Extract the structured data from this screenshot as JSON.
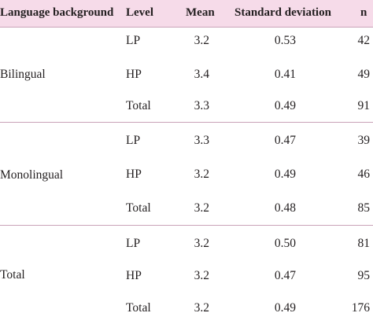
{
  "table": {
    "headers": {
      "language_background": "Language background",
      "level": "Level",
      "mean": "Mean",
      "sd": "Standard deviation",
      "n": "n"
    },
    "groups": [
      {
        "language": "Bilingual",
        "rows": [
          {
            "level": "LP",
            "mean": "3.2",
            "sd": "0.53",
            "n": "42"
          },
          {
            "level": "HP",
            "mean": "3.4",
            "sd": "0.41",
            "n": "49"
          },
          {
            "level": "Total",
            "mean": "3.3",
            "sd": "0.49",
            "n": "91"
          }
        ]
      },
      {
        "language": "Monolingual",
        "rows": [
          {
            "level": "LP",
            "mean": "3.3",
            "sd": "0.47",
            "n": "39"
          },
          {
            "level": "HP",
            "mean": "3.2",
            "sd": "0.49",
            "n": "46"
          },
          {
            "level": "Total",
            "mean": "3.2",
            "sd": "0.48",
            "n": "85"
          }
        ]
      },
      {
        "language": "Total",
        "rows": [
          {
            "level": "LP",
            "mean": "3.2",
            "sd": "0.50",
            "n": "81"
          },
          {
            "level": "HP",
            "mean": "3.2",
            "sd": "0.47",
            "n": "95"
          },
          {
            "level": "Total",
            "mean": "3.2",
            "sd": "0.49",
            "n": "176"
          }
        ]
      }
    ]
  }
}
